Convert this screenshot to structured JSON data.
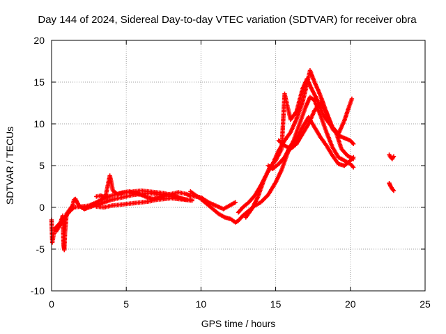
{
  "chart_data": {
    "type": "scatter",
    "title": "Day 144 of 2024, Sidereal Day-to-day VTEC variation (SDTVAR) for receiver obra",
    "xlabel": "GPS time / hours",
    "ylabel": "SDTVAR / TECUs",
    "xlim": [
      0,
      25
    ],
    "ylim": [
      -10,
      20
    ],
    "x_ticks": [
      0,
      5,
      10,
      15,
      20,
      25
    ],
    "x_tick_labels": [
      "0",
      "5",
      "10",
      "15",
      "20",
      "25"
    ],
    "y_ticks": [
      -10,
      -5,
      0,
      5,
      10,
      15,
      20
    ],
    "y_tick_labels": [
      "-10",
      "-5",
      "0",
      "5",
      "10",
      "15",
      "20"
    ],
    "grid": true,
    "marker": "+",
    "series": [
      {
        "name": "SDTVAR",
        "color": "#ff0000",
        "traces": [
          [
            [
              0.0,
              -1.5
            ],
            [
              0.05,
              -4.2
            ],
            [
              0.2,
              -2.6
            ],
            [
              0.4,
              -2.2
            ],
            [
              0.6,
              -1.8
            ],
            [
              0.75,
              -1.0
            ],
            [
              0.8,
              -4.5
            ],
            [
              0.85,
              -5.1
            ],
            [
              0.9,
              -3.0
            ],
            [
              1.0,
              -0.8
            ],
            [
              1.2,
              -0.3
            ],
            [
              1.4,
              0.2
            ],
            [
              1.5,
              0.9
            ],
            [
              1.6,
              1.0
            ],
            [
              1.8,
              0.3
            ],
            [
              2.0,
              0.0
            ],
            [
              2.2,
              -0.2
            ],
            [
              2.5,
              0.0
            ],
            [
              3.0,
              0.3
            ],
            [
              3.5,
              0.6
            ],
            [
              4.0,
              0.9
            ],
            [
              4.5,
              1.1
            ],
            [
              5.0,
              1.3
            ],
            [
              5.5,
              1.5
            ],
            [
              6.0,
              1.6
            ],
            [
              6.5,
              1.7
            ],
            [
              7.0,
              1.6
            ],
            [
              7.5,
              1.5
            ],
            [
              8.0,
              1.6
            ],
            [
              8.5,
              1.8
            ],
            [
              9.0,
              1.6
            ],
            [
              9.3,
              1.4
            ],
            [
              9.6,
              1.3
            ],
            [
              10.0,
              1.2
            ],
            [
              10.5,
              0.6
            ],
            [
              11.0,
              0.2
            ],
            [
              11.5,
              -0.2
            ],
            [
              12.0,
              0.3
            ],
            [
              12.3,
              0.6
            ]
          ],
          [
            [
              0.3,
              -2.9
            ],
            [
              0.6,
              -2.0
            ],
            [
              0.9,
              -1.2
            ],
            [
              1.2,
              -0.5
            ],
            [
              1.5,
              0.0
            ],
            [
              2.0,
              0.1
            ],
            [
              2.5,
              0.2
            ],
            [
              3.0,
              0.6
            ],
            [
              3.5,
              1.1
            ],
            [
              4.0,
              1.4
            ],
            [
              4.5,
              1.6
            ],
            [
              5.0,
              1.8
            ],
            [
              5.5,
              1.9
            ],
            [
              6.0,
              2.0
            ],
            [
              6.5,
              1.9
            ],
            [
              7.0,
              1.8
            ],
            [
              7.5,
              1.7
            ],
            [
              8.0,
              1.5
            ],
            [
              8.5,
              1.2
            ],
            [
              9.0,
              0.9
            ],
            [
              9.4,
              0.8
            ]
          ],
          [
            [
              3.0,
              0.1
            ],
            [
              3.5,
              0.0
            ],
            [
              4.0,
              0.2
            ],
            [
              4.5,
              0.3
            ],
            [
              5.0,
              0.4
            ],
            [
              5.5,
              0.5
            ],
            [
              6.0,
              0.6
            ],
            [
              6.5,
              0.7
            ],
            [
              7.0,
              0.9
            ],
            [
              7.5,
              1.0
            ],
            [
              8.0,
              1.1
            ],
            [
              8.5,
              1.0
            ],
            [
              9.0,
              0.9
            ],
            [
              9.4,
              0.9
            ]
          ],
          [
            [
              3.0,
              1.3
            ],
            [
              3.3,
              1.4
            ],
            [
              3.6,
              1.2
            ],
            [
              3.9,
              3.8
            ],
            [
              4.0,
              3.0
            ],
            [
              4.1,
              2.0
            ],
            [
              4.4,
              1.6
            ],
            [
              4.8,
              1.8
            ],
            [
              5.2,
              1.9
            ],
            [
              5.6,
              1.7
            ],
            [
              6.0,
              1.5
            ],
            [
              6.4,
              1.2
            ],
            [
              6.8,
              1.0
            ],
            [
              7.2,
              1.2
            ],
            [
              7.6,
              1.4
            ],
            [
              8.0,
              1.3
            ],
            [
              8.4,
              1.2
            ],
            [
              8.8,
              1.0
            ],
            [
              9.2,
              0.9
            ]
          ],
          [
            [
              9.3,
              1.9
            ],
            [
              9.6,
              1.5
            ],
            [
              10.0,
              1.0
            ],
            [
              10.4,
              0.4
            ],
            [
              10.8,
              -0.2
            ],
            [
              11.2,
              -0.8
            ],
            [
              11.6,
              -1.2
            ],
            [
              12.0,
              -1.4
            ],
            [
              12.3,
              -1.8
            ],
            [
              12.5,
              -1.6
            ],
            [
              12.8,
              -1.0
            ],
            [
              13.2,
              -0.4
            ],
            [
              13.6,
              0.2
            ],
            [
              14.0,
              0.6
            ],
            [
              14.5,
              1.5
            ],
            [
              15.0,
              3.0
            ],
            [
              15.4,
              4.5
            ],
            [
              15.8,
              6.5
            ],
            [
              16.2,
              8.0
            ],
            [
              16.6,
              10.0
            ],
            [
              17.0,
              12.0
            ],
            [
              17.3,
              13.2
            ],
            [
              17.6,
              12.8
            ],
            [
              18.0,
              11.0
            ],
            [
              18.4,
              9.0
            ],
            [
              18.8,
              7.2
            ],
            [
              19.2,
              6.0
            ],
            [
              19.6,
              5.6
            ],
            [
              20.0,
              5.2
            ],
            [
              20.2,
              4.8
            ]
          ],
          [
            [
              12.5,
              -0.6
            ],
            [
              12.8,
              0.0
            ],
            [
              13.2,
              0.6
            ],
            [
              13.6,
              1.4
            ],
            [
              14.0,
              2.6
            ],
            [
              14.4,
              4.0
            ],
            [
              14.8,
              5.2
            ],
            [
              15.2,
              6.8
            ],
            [
              15.6,
              8.0
            ],
            [
              16.0,
              9.0
            ],
            [
              16.4,
              10.6
            ],
            [
              16.8,
              12.6
            ],
            [
              17.1,
              14.8
            ],
            [
              17.3,
              16.4
            ],
            [
              17.6,
              15.0
            ],
            [
              17.9,
              13.8
            ],
            [
              18.2,
              12.4
            ],
            [
              18.5,
              10.8
            ],
            [
              18.8,
              9.4
            ],
            [
              19.2,
              8.6
            ],
            [
              19.6,
              8.3
            ],
            [
              20.0,
              8.0
            ],
            [
              20.2,
              7.6
            ]
          ],
          [
            [
              13.0,
              -1.2
            ],
            [
              13.4,
              -0.2
            ],
            [
              13.8,
              1.2
            ],
            [
              14.2,
              3.2
            ],
            [
              14.6,
              4.8
            ],
            [
              15.0,
              5.6
            ],
            [
              15.4,
              7.0
            ],
            [
              15.6,
              13.6
            ],
            [
              15.8,
              12.0
            ],
            [
              16.0,
              10.5
            ],
            [
              16.4,
              11.5
            ],
            [
              16.8,
              14.2
            ],
            [
              17.1,
              15.4
            ],
            [
              17.4,
              14.2
            ],
            [
              17.8,
              12.8
            ],
            [
              18.2,
              11.0
            ],
            [
              18.6,
              10.0
            ],
            [
              19.0,
              9.2
            ],
            [
              19.4,
              7.0
            ],
            [
              19.8,
              6.2
            ],
            [
              20.2,
              5.8
            ]
          ],
          [
            [
              14.5,
              5.0
            ],
            [
              14.8,
              4.6
            ],
            [
              15.2,
              5.2
            ],
            [
              15.6,
              6.0
            ],
            [
              16.0,
              7.4
            ],
            [
              16.4,
              8.2
            ],
            [
              16.8,
              9.6
            ],
            [
              17.2,
              10.8
            ],
            [
              17.6,
              9.6
            ],
            [
              18.0,
              8.4
            ],
            [
              18.4,
              7.4
            ],
            [
              18.8,
              6.2
            ],
            [
              19.2,
              5.2
            ],
            [
              19.6,
              5.0
            ],
            [
              20.0,
              5.6
            ],
            [
              20.2,
              6.0
            ]
          ],
          [
            [
              15.2,
              8.0
            ],
            [
              15.6,
              7.4
            ],
            [
              16.0,
              7.0
            ],
            [
              16.4,
              7.6
            ],
            [
              16.8,
              8.8
            ],
            [
              17.2,
              10.0
            ],
            [
              17.6,
              11.6
            ],
            [
              18.0,
              12.6
            ],
            [
              18.4,
              11.4
            ],
            [
              18.8,
              9.6
            ],
            [
              19.2,
              8.8
            ],
            [
              19.6,
              10.4
            ],
            [
              19.9,
              12.0
            ],
            [
              20.1,
              13.0
            ]
          ],
          [
            [
              22.6,
              6.3
            ],
            [
              22.7,
              6.0
            ],
            [
              22.8,
              5.8
            ],
            [
              22.9,
              6.1
            ]
          ],
          [
            [
              22.6,
              2.9
            ],
            [
              22.7,
              2.5
            ],
            [
              22.8,
              2.2
            ],
            [
              22.9,
              2.0
            ]
          ]
        ]
      }
    ]
  }
}
